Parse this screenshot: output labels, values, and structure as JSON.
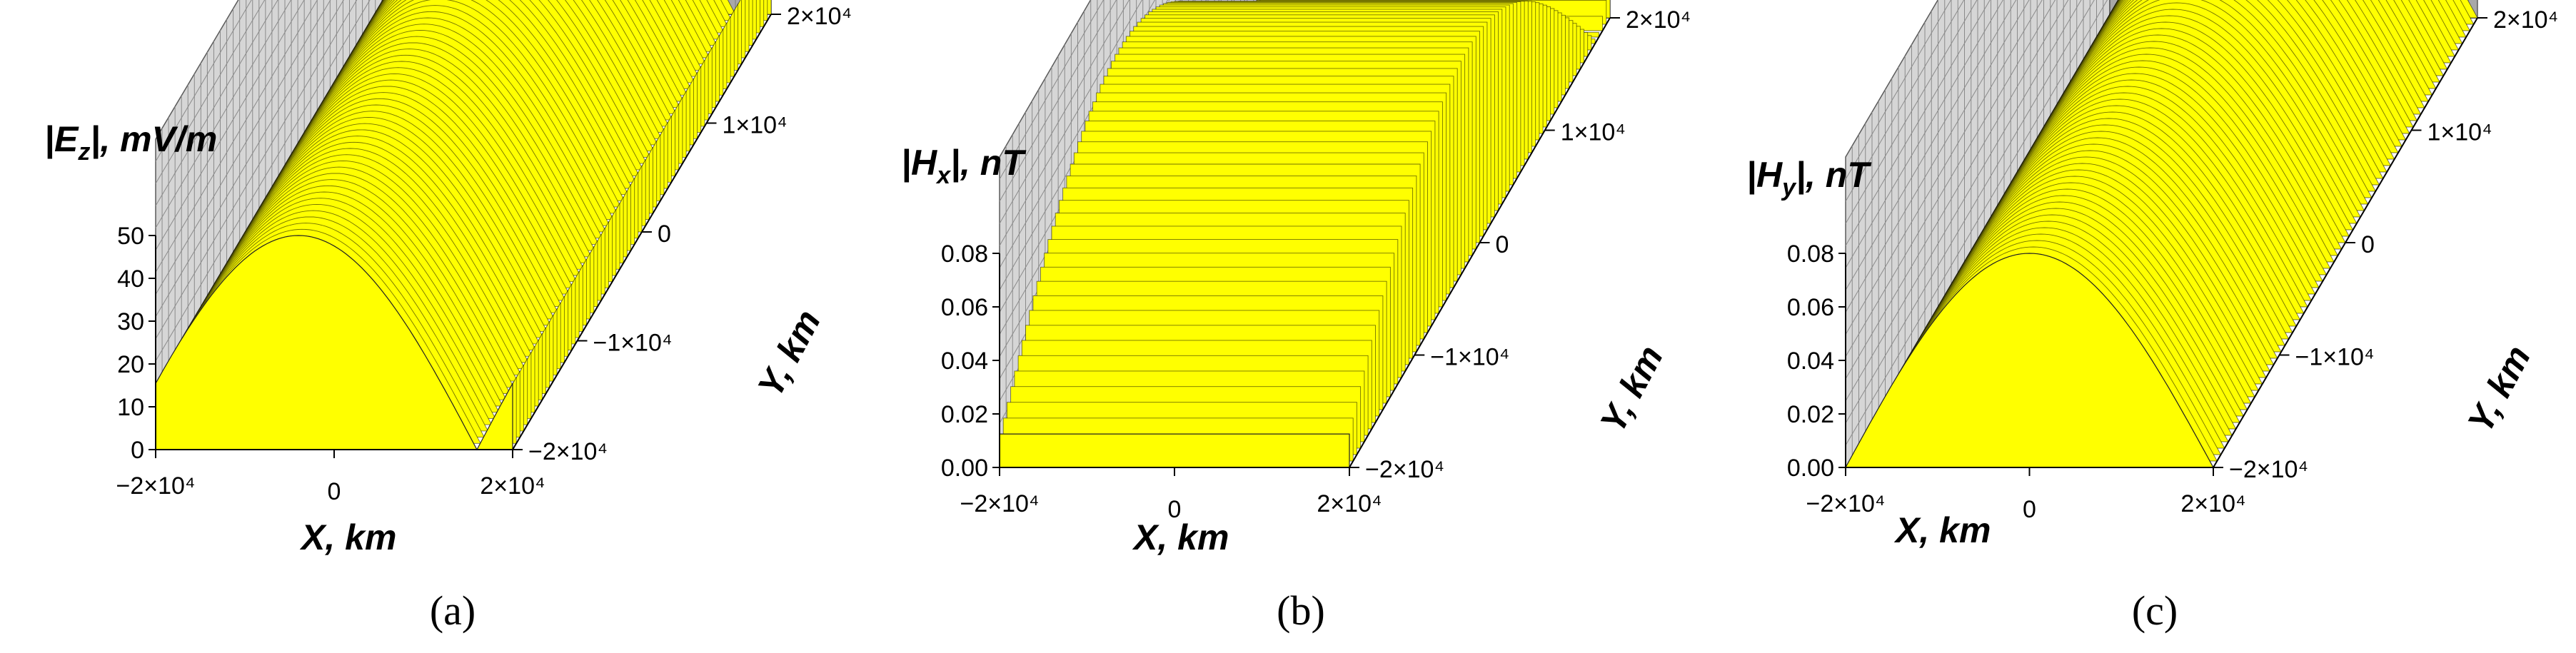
{
  "figure": {
    "panels": [
      {
        "caption": "(a)",
        "z_label": "|E",
        "z_sub": "z",
        "z_unit": "|, mV/m"
      },
      {
        "caption": "(b)",
        "z_label": "|H",
        "z_sub": "x",
        "z_unit": "|, nT"
      },
      {
        "caption": "(c)",
        "z_label": "|H",
        "z_sub": "y",
        "z_unit": "|, nT"
      }
    ],
    "colors": {
      "surface": "#ffff00",
      "surface_line": "#000000",
      "wall": "#a8a8a8",
      "grid": "#5a5a5a"
    }
  },
  "chart_data": [
    {
      "type": "surface3d",
      "title": "",
      "xlabel": "X, km",
      "ylabel": "Y, km",
      "zlabel": "|Ez|, mV/m",
      "xlim": [
        -20000,
        20000
      ],
      "ylim": [
        -20000,
        20000
      ],
      "zlim": [
        0,
        50
      ],
      "x_ticks": [
        "−2×10⁴",
        "0",
        "2×10⁴"
      ],
      "y_ticks": [
        "−2×10⁴",
        "−1×10⁴",
        "0",
        "1×10⁴",
        "2×10⁴"
      ],
      "z_ticks": [
        "0",
        "10",
        "20",
        "30",
        "40",
        "50"
      ],
      "z_tick_values": [
        0,
        10,
        20,
        30,
        40,
        50
      ],
      "shape": "|cos| ridge along Y, varies with X",
      "peak_value": 50,
      "zero_x": [
        -4000
      ],
      "grid": true
    },
    {
      "type": "surface3d",
      "title": "",
      "xlabel": "X, km",
      "ylabel": "Y, km",
      "zlabel": "|Hx|, nT",
      "xlim": [
        -20000,
        20000
      ],
      "ylim": [
        -20000,
        20000
      ],
      "zlim": [
        0,
        0.08
      ],
      "x_ticks": [
        "−2×10⁴",
        "0",
        "2×10⁴"
      ],
      "y_ticks": [
        "−2×10⁴",
        "−1×10⁴",
        "0",
        "1×10⁴",
        "2×10⁴"
      ],
      "z_ticks": [
        "0.00",
        "0.02",
        "0.04",
        "0.06",
        "0.08"
      ],
      "z_tick_values": [
        0,
        0.02,
        0.04,
        0.06,
        0.08
      ],
      "shape": "|cos| in Y, constant in X",
      "peak_value": 0.08,
      "zero_y": [
        -2000
      ],
      "grid": true
    },
    {
      "type": "surface3d",
      "title": "",
      "xlabel": "X, km",
      "ylabel": "Y, km",
      "zlabel": "|Hy|, nT",
      "xlim": [
        -20000,
        20000
      ],
      "ylim": [
        -20000,
        20000
      ],
      "zlim": [
        0,
        0.08
      ],
      "x_ticks": [
        "−2×10⁴",
        "0",
        "2×10⁴"
      ],
      "y_ticks": [
        "−2×10⁴",
        "−1×10⁴",
        "0",
        "1×10⁴",
        "2×10⁴"
      ],
      "z_ticks": [
        "0.00",
        "0.02",
        "0.04",
        "0.06",
        "0.08"
      ],
      "z_tick_values": [
        0,
        0.02,
        0.04,
        0.06,
        0.08
      ],
      "shape": "|cos| in X, constant in Y",
      "peak_value": 0.08,
      "zero_x": [
        0
      ],
      "grid": true
    }
  ]
}
